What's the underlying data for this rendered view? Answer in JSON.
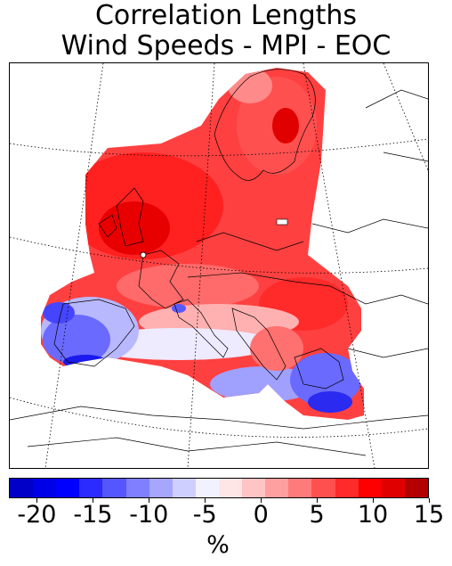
{
  "title_line1": "Correlation Lengths",
  "title_line2": "Wind Speeds - MPI - EOC",
  "colorbar": {
    "min": -22.5,
    "max": 15,
    "step": 2.5,
    "ticks": [
      "-20",
      "-15",
      "-10",
      "-5",
      "0",
      "5",
      "10",
      "15"
    ],
    "unit": "%",
    "colors": [
      "#0000c8",
      "#0000e6",
      "#0000ff",
      "#2b2bff",
      "#5656ff",
      "#7f7fff",
      "#a6a6ff",
      "#cfcfff",
      "#f2f2ff",
      "#ffe6e6",
      "#ffc4c4",
      "#ffa0a0",
      "#ff7a7a",
      "#ff5050",
      "#ff2a2a",
      "#ff0000",
      "#e00000",
      "#b40000"
    ]
  },
  "map": {
    "region": "Europe",
    "projection": "Lambert conformal",
    "colors": {
      "strong_red": "#e80000",
      "red": "#ff3030",
      "light_red": "#ff7070",
      "pink": "#ffbcbc",
      "pale": "#f4f0ff",
      "light_blue": "#b0b0ff",
      "blue": "#5a5aff",
      "deep_blue": "#1818f0"
    }
  }
}
